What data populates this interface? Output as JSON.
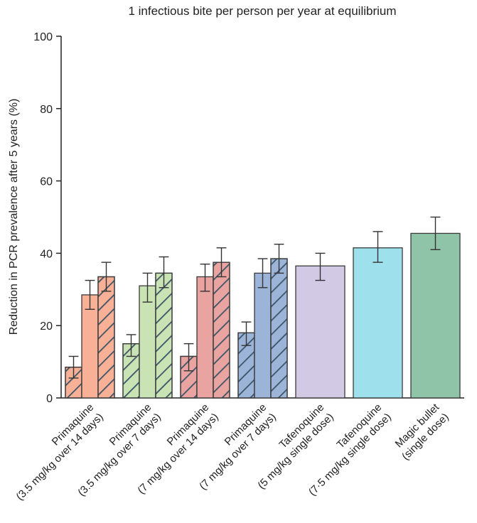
{
  "chart_data": {
    "type": "bar",
    "title": "1 infectious bite per person per year at equilibrium",
    "xlabel": "",
    "ylabel": "Reduction in PCR prevalence after 5 years (%)",
    "ylim": [
      0,
      100
    ],
    "yticks": [
      0,
      20,
      40,
      60,
      80,
      100
    ],
    "grid": false,
    "groups": [
      {
        "label_lines": [
          "Primaquine",
          "(3.5 mg/kg over 14 days)"
        ],
        "color": "#f8b096",
        "bars": [
          {
            "value": 8.5,
            "err_low": 5.5,
            "err_high": 11.5,
            "hatched": true
          },
          {
            "value": 28.5,
            "err_low": 24.5,
            "err_high": 32.5,
            "hatched": false
          },
          {
            "value": 33.5,
            "err_low": 29.5,
            "err_high": 37.5,
            "hatched": true
          }
        ]
      },
      {
        "label_lines": [
          "Primaquine",
          "(3.5 mg/kg over 7 days)"
        ],
        "color": "#c9e3b5",
        "bars": [
          {
            "value": 15,
            "err_low": 11.5,
            "err_high": 17.5,
            "hatched": true
          },
          {
            "value": 31,
            "err_low": 26.5,
            "err_high": 34.5,
            "hatched": false
          },
          {
            "value": 34.5,
            "err_low": 30.5,
            "err_high": 39,
            "hatched": true
          }
        ]
      },
      {
        "label_lines": [
          "Primaquine",
          "(7 mg/kg over 14 days)"
        ],
        "color": "#e9a3a0",
        "bars": [
          {
            "value": 11.5,
            "err_low": 7.5,
            "err_high": 15,
            "hatched": true
          },
          {
            "value": 33.5,
            "err_low": 29.5,
            "err_high": 37,
            "hatched": false
          },
          {
            "value": 37.5,
            "err_low": 33.5,
            "err_high": 41.5,
            "hatched": true
          }
        ]
      },
      {
        "label_lines": [
          "Primaquine",
          "(7 mg/kg over 7 days)"
        ],
        "color": "#9db4d9",
        "bars": [
          {
            "value": 18,
            "err_low": 14.5,
            "err_high": 21,
            "hatched": true
          },
          {
            "value": 34.5,
            "err_low": 30.5,
            "err_high": 38.5,
            "hatched": false
          },
          {
            "value": 38.5,
            "err_low": 34.5,
            "err_high": 42.5,
            "hatched": true
          }
        ]
      },
      {
        "label_lines": [
          "Tafenoquine",
          "(5 mg/kg single dose)"
        ],
        "color": "#d2c9e4",
        "bars": [
          {
            "value": 36.5,
            "err_low": 32.5,
            "err_high": 40,
            "hatched": false
          }
        ]
      },
      {
        "label_lines": [
          "Tafenoquine",
          "(7·5 mg/kg single dose)"
        ],
        "color": "#9ee0eb",
        "bars": [
          {
            "value": 41.5,
            "err_low": 37.5,
            "err_high": 46,
            "hatched": false
          }
        ]
      },
      {
        "label_lines": [
          "Magic bullet",
          "(single dose)"
        ],
        "color": "#8fc4a8",
        "bars": [
          {
            "value": 45.5,
            "err_low": 41,
            "err_high": 50,
            "hatched": false
          }
        ]
      }
    ]
  },
  "colors": {
    "axis": "#222222",
    "hatch": "#3d5566",
    "bar_stroke": "#3a3a3a"
  }
}
